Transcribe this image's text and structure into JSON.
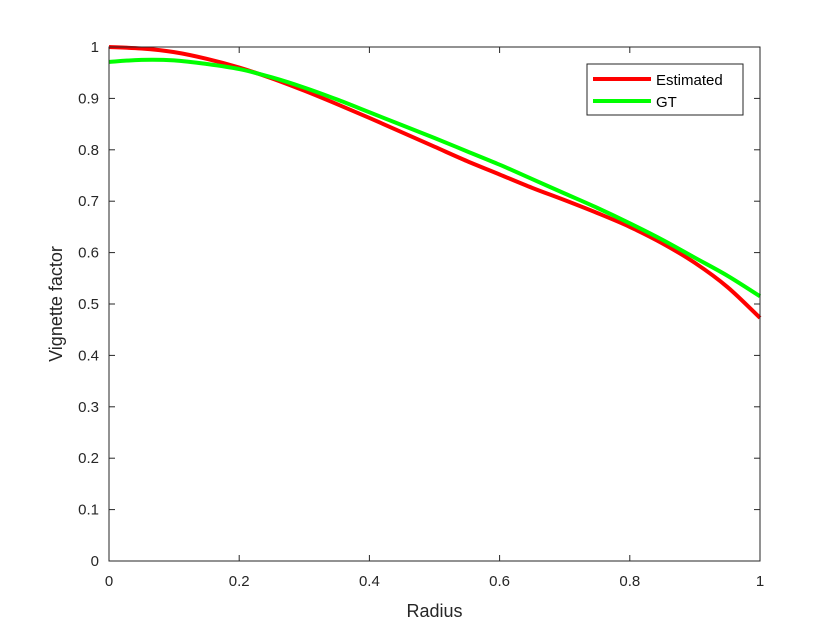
{
  "chart_data": {
    "type": "line",
    "xlabel": "Radius",
    "ylabel": "Vignette factor",
    "xlim": [
      0,
      1
    ],
    "ylim": [
      0,
      1
    ],
    "xticks": [
      0,
      0.2,
      0.4,
      0.6,
      0.8,
      1
    ],
    "xtick_labels": [
      "0",
      "0.2",
      "0.4",
      "0.6",
      "0.8",
      "1"
    ],
    "yticks": [
      0,
      0.1,
      0.2,
      0.3,
      0.4,
      0.5,
      0.6,
      0.7,
      0.8,
      0.9,
      1
    ],
    "ytick_labels": [
      "0",
      "0.1",
      "0.2",
      "0.3",
      "0.4",
      "0.5",
      "0.6",
      "0.7",
      "0.8",
      "0.9",
      "1"
    ],
    "grid": false,
    "legend_position": "top-right",
    "series": [
      {
        "name": "Estimated",
        "color": "#ff0000",
        "x": [
          0,
          0.05,
          0.1,
          0.15,
          0.2,
          0.25,
          0.3,
          0.35,
          0.4,
          0.45,
          0.5,
          0.55,
          0.6,
          0.65,
          0.7,
          0.75,
          0.8,
          0.85,
          0.9,
          0.95,
          1.0
        ],
        "y": [
          1.0,
          0.997,
          0.99,
          0.977,
          0.96,
          0.939,
          0.915,
          0.889,
          0.862,
          0.834,
          0.806,
          0.778,
          0.752,
          0.726,
          0.702,
          0.677,
          0.65,
          0.618,
          0.58,
          0.533,
          0.473
        ]
      },
      {
        "name": "GT",
        "color": "#00ff00",
        "x": [
          0,
          0.05,
          0.1,
          0.15,
          0.2,
          0.25,
          0.3,
          0.35,
          0.4,
          0.45,
          0.5,
          0.55,
          0.6,
          0.65,
          0.7,
          0.75,
          0.8,
          0.85,
          0.9,
          0.95,
          1.0
        ],
        "y": [
          0.971,
          0.975,
          0.974,
          0.967,
          0.957,
          0.941,
          0.921,
          0.898,
          0.873,
          0.848,
          0.823,
          0.797,
          0.771,
          0.743,
          0.715,
          0.687,
          0.657,
          0.625,
          0.59,
          0.555,
          0.515
        ]
      }
    ]
  }
}
